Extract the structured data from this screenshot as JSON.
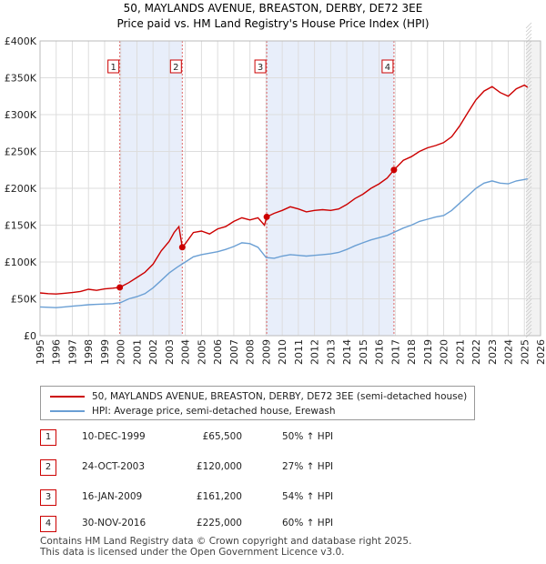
{
  "chart_data": {
    "type": "line",
    "title": "50, MAYLANDS AVENUE, BREASTON, DERBY, DE72 3EE",
    "subtitle": "Price paid vs. HM Land Registry's House Price Index (HPI)",
    "xlim": [
      1995,
      2026
    ],
    "ylim": [
      0,
      400000
    ],
    "x_ticks": [
      "1995",
      "1996",
      "1997",
      "1998",
      "1999",
      "2000",
      "2001",
      "2002",
      "2003",
      "2004",
      "2005",
      "2006",
      "2007",
      "2008",
      "2009",
      "2010",
      "2011",
      "2012",
      "2013",
      "2014",
      "2015",
      "2016",
      "2017",
      "2018",
      "2019",
      "2020",
      "2021",
      "2022",
      "2023",
      "2024",
      "2025",
      "2026"
    ],
    "y_ticks": [
      {
        "value": 0,
        "label": "£0"
      },
      {
        "value": 50000,
        "label": "£50K"
      },
      {
        "value": 100000,
        "label": "£100K"
      },
      {
        "value": 150000,
        "label": "£150K"
      },
      {
        "value": 200000,
        "label": "£200K"
      },
      {
        "value": 250000,
        "label": "£250K"
      },
      {
        "value": 300000,
        "label": "£300K"
      },
      {
        "value": 350000,
        "label": "£350K"
      },
      {
        "value": 400000,
        "label": "£400K"
      }
    ],
    "shaded_periods": [
      [
        1999.94,
        2003.81
      ],
      [
        2009.04,
        2016.92
      ]
    ],
    "forecast_start": 2025.1,
    "series": [
      {
        "name": "50, MAYLANDS AVENUE, BREASTON, DERBY, DE72 3EE (semi-detached house)",
        "color": "#cc0000",
        "points": [
          [
            1995.0,
            58000
          ],
          [
            1995.5,
            57000
          ],
          [
            1996.0,
            56500
          ],
          [
            1996.5,
            57500
          ],
          [
            1997.0,
            58500
          ],
          [
            1997.5,
            60000
          ],
          [
            1998.0,
            63000
          ],
          [
            1998.5,
            61500
          ],
          [
            1999.0,
            63500
          ],
          [
            1999.5,
            64500
          ],
          [
            1999.94,
            65500
          ],
          [
            2000.5,
            72000
          ],
          [
            2001.0,
            79000
          ],
          [
            2001.5,
            86000
          ],
          [
            2002.0,
            97000
          ],
          [
            2002.5,
            115000
          ],
          [
            2003.0,
            128000
          ],
          [
            2003.3,
            140000
          ],
          [
            2003.6,
            148000
          ],
          [
            2003.81,
            120000
          ],
          [
            2004.0,
            125000
          ],
          [
            2004.5,
            140000
          ],
          [
            2005.0,
            142000
          ],
          [
            2005.5,
            138000
          ],
          [
            2006.0,
            145000
          ],
          [
            2006.5,
            148000
          ],
          [
            2007.0,
            155000
          ],
          [
            2007.5,
            160000
          ],
          [
            2008.0,
            157000
          ],
          [
            2008.5,
            160000
          ],
          [
            2008.9,
            150000
          ],
          [
            2009.04,
            161200
          ],
          [
            2009.5,
            166000
          ],
          [
            2010.0,
            170000
          ],
          [
            2010.5,
            175000
          ],
          [
            2011.0,
            172000
          ],
          [
            2011.5,
            168000
          ],
          [
            2012.0,
            170000
          ],
          [
            2012.5,
            171000
          ],
          [
            2013.0,
            170000
          ],
          [
            2013.5,
            172000
          ],
          [
            2014.0,
            178000
          ],
          [
            2014.5,
            186000
          ],
          [
            2015.0,
            192000
          ],
          [
            2015.5,
            200000
          ],
          [
            2016.0,
            206000
          ],
          [
            2016.5,
            214000
          ],
          [
            2016.92,
            225000
          ],
          [
            2017.5,
            238000
          ],
          [
            2018.0,
            243000
          ],
          [
            2018.5,
            250000
          ],
          [
            2019.0,
            255000
          ],
          [
            2019.5,
            258000
          ],
          [
            2020.0,
            262000
          ],
          [
            2020.5,
            270000
          ],
          [
            2021.0,
            285000
          ],
          [
            2021.5,
            303000
          ],
          [
            2022.0,
            320000
          ],
          [
            2022.5,
            332000
          ],
          [
            2023.0,
            338000
          ],
          [
            2023.5,
            330000
          ],
          [
            2024.0,
            325000
          ],
          [
            2024.5,
            335000
          ],
          [
            2025.0,
            340000
          ],
          [
            2025.2,
            337000
          ]
        ]
      },
      {
        "name": "HPI: Average price, semi-detached house, Erewash",
        "color": "#6a9fd4",
        "points": [
          [
            1995.0,
            39000
          ],
          [
            1995.5,
            38500
          ],
          [
            1996.0,
            38000
          ],
          [
            1996.5,
            39000
          ],
          [
            1997.0,
            40000
          ],
          [
            1997.5,
            41000
          ],
          [
            1998.0,
            42000
          ],
          [
            1998.5,
            42500
          ],
          [
            1999.0,
            43000
          ],
          [
            1999.5,
            43500
          ],
          [
            2000.0,
            45000
          ],
          [
            2000.5,
            50000
          ],
          [
            2001.0,
            53000
          ],
          [
            2001.5,
            57000
          ],
          [
            2002.0,
            65000
          ],
          [
            2002.5,
            75000
          ],
          [
            2003.0,
            85000
          ],
          [
            2003.5,
            93000
          ],
          [
            2004.0,
            100000
          ],
          [
            2004.5,
            107000
          ],
          [
            2005.0,
            110000
          ],
          [
            2005.5,
            112000
          ],
          [
            2006.0,
            114000
          ],
          [
            2006.5,
            117000
          ],
          [
            2007.0,
            121000
          ],
          [
            2007.5,
            126000
          ],
          [
            2008.0,
            125000
          ],
          [
            2008.5,
            120000
          ],
          [
            2009.0,
            106000
          ],
          [
            2009.5,
            105000
          ],
          [
            2010.0,
            108000
          ],
          [
            2010.5,
            110000
          ],
          [
            2011.0,
            109000
          ],
          [
            2011.5,
            108000
          ],
          [
            2012.0,
            109000
          ],
          [
            2012.5,
            110000
          ],
          [
            2013.0,
            111000
          ],
          [
            2013.5,
            113000
          ],
          [
            2014.0,
            117000
          ],
          [
            2014.5,
            122000
          ],
          [
            2015.0,
            126000
          ],
          [
            2015.5,
            130000
          ],
          [
            2016.0,
            133000
          ],
          [
            2016.5,
            136000
          ],
          [
            2017.0,
            141000
          ],
          [
            2017.5,
            146000
          ],
          [
            2018.0,
            150000
          ],
          [
            2018.5,
            155000
          ],
          [
            2019.0,
            158000
          ],
          [
            2019.5,
            161000
          ],
          [
            2020.0,
            163000
          ],
          [
            2020.5,
            170000
          ],
          [
            2021.0,
            180000
          ],
          [
            2021.5,
            190000
          ],
          [
            2022.0,
            200000
          ],
          [
            2022.5,
            207000
          ],
          [
            2023.0,
            210000
          ],
          [
            2023.5,
            207000
          ],
          [
            2024.0,
            206000
          ],
          [
            2024.5,
            210000
          ],
          [
            2025.0,
            212000
          ],
          [
            2025.2,
            213000
          ]
        ]
      }
    ],
    "sale_markers": [
      {
        "num": "1",
        "x": 1999.94,
        "y": 65500
      },
      {
        "num": "2",
        "x": 2003.81,
        "y": 120000
      },
      {
        "num": "3",
        "x": 2009.04,
        "y": 161200
      },
      {
        "num": "4",
        "x": 2016.92,
        "y": 225000
      }
    ]
  },
  "legend": {
    "property_label": "50, MAYLANDS AVENUE, BREASTON, DERBY, DE72 3EE (semi-detached house)",
    "hpi_label": "HPI: Average price, semi-detached house, Erewash",
    "property_color": "#cc0000",
    "hpi_color": "#6a9fd4"
  },
  "sales": [
    {
      "num": "1",
      "date": "10-DEC-1999",
      "price": "£65,500",
      "hpi": "50% ↑ HPI"
    },
    {
      "num": "2",
      "date": "24-OCT-2003",
      "price": "£120,000",
      "hpi": "27% ↑ HPI"
    },
    {
      "num": "3",
      "date": "16-JAN-2009",
      "price": "£161,200",
      "hpi": "54% ↑ HPI"
    },
    {
      "num": "4",
      "date": "30-NOV-2016",
      "price": "£225,000",
      "hpi": "60% ↑ HPI"
    }
  ],
  "footer": {
    "line1": "Contains HM Land Registry data © Crown copyright and database right 2025.",
    "line2": "This data is licensed under the Open Government Licence v3.0."
  }
}
